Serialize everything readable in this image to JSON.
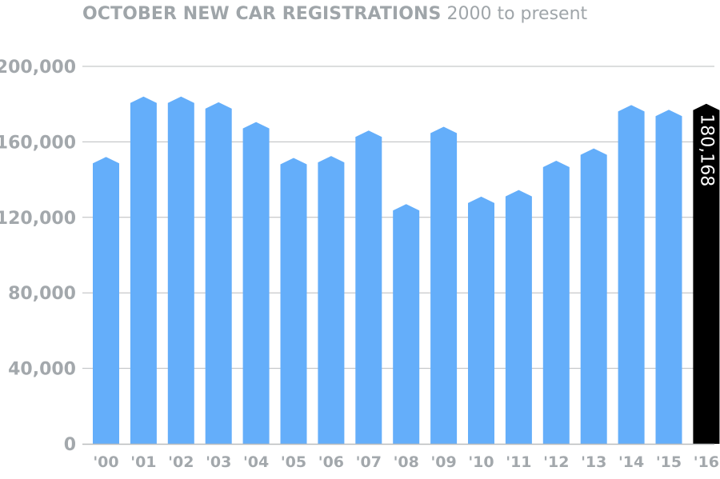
{
  "chart_data": {
    "type": "bar",
    "title": "OCTOBER NEW CAR REGISTRATIONS",
    "subtitle": "2000 to present",
    "xlabel": "",
    "ylabel": "",
    "categories": [
      "'00",
      "'01",
      "'02",
      "'03",
      "'04",
      "'05",
      "'06",
      "'07",
      "'08",
      "'09",
      "'10",
      "'11",
      "'12",
      "'13",
      "'14",
      "'15",
      "'16"
    ],
    "values": [
      152000,
      184000,
      184000,
      181000,
      170500,
      151500,
      152500,
      166000,
      127000,
      168000,
      131000,
      134500,
      150000,
      156500,
      179500,
      177000,
      180168
    ],
    "yticks": [
      {
        "value": 0,
        "label": "0"
      },
      {
        "value": 40000,
        "label": "40,000"
      },
      {
        "value": 80000,
        "label": "80,000"
      },
      {
        "value": 120000,
        "label": "120,000"
      },
      {
        "value": 160000,
        "label": "160,000"
      },
      {
        "value": 200000,
        "label": "200,000"
      }
    ],
    "ylim": [
      0,
      200000
    ],
    "grid": true,
    "highlight_index": 16,
    "highlight_label": "180,168",
    "colors": {
      "bar": "#64aefa",
      "highlight": "#000000",
      "text": "#a3a8ac",
      "grid": "#b9bcbe"
    }
  }
}
